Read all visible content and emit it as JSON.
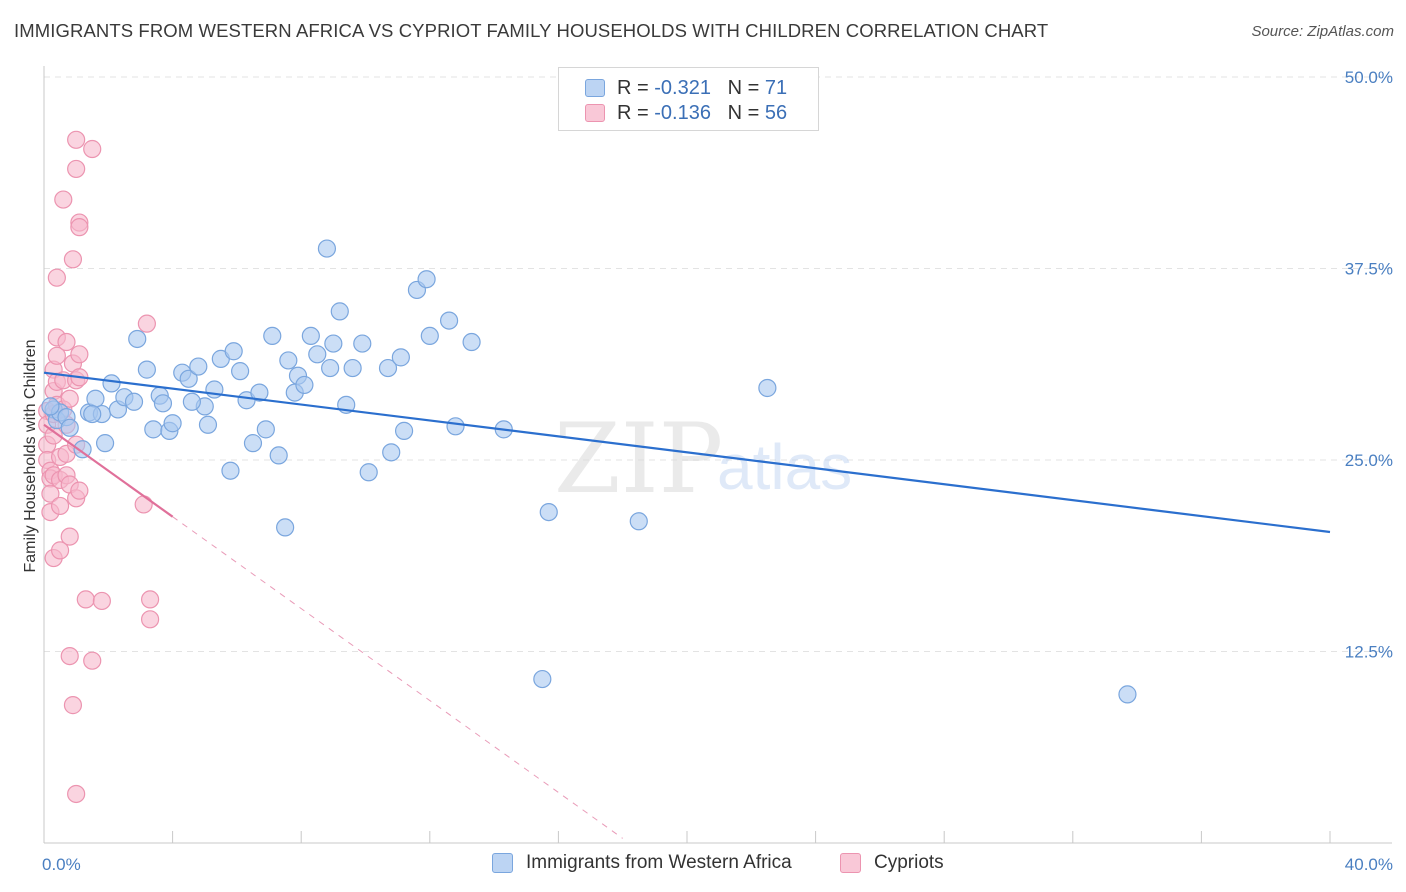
{
  "title": "IMMIGRANTS FROM WESTERN AFRICA VS CYPRIOT FAMILY HOUSEHOLDS WITH CHILDREN CORRELATION CHART",
  "source": "Source: ZipAtlas.com",
  "watermark": {
    "zip": "ZIP",
    "atlas": "atlas"
  },
  "legend": {
    "blue": {
      "r_label": "R = ",
      "r_value": "-0.321",
      "n_label": "N = ",
      "n_value": "71"
    },
    "pink": {
      "r_label": "R = ",
      "r_value": "-0.136",
      "n_label": "N = ",
      "n_value": "56"
    }
  },
  "colors": {
    "blue_fill": "#a9c8f0",
    "blue_stroke": "#7aa6de",
    "blue_line": "#2b6fce",
    "pink_fill": "#f6b8cb",
    "pink_stroke": "#ec94b0",
    "pink_line": "#e0709a",
    "grid": "#e3e3e3",
    "tick_text": "#4a7fc1"
  },
  "chart_data": {
    "type": "scatter",
    "title": "IMMIGRANTS FROM WESTERN AFRICA VS CYPRIOT FAMILY HOUSEHOLDS WITH CHILDREN CORRELATION CHART",
    "xlabel": "",
    "ylabel": "Family Households with Children",
    "xlim": [
      0,
      40
    ],
    "ylim": [
      0,
      50
    ],
    "x_tick_labels": [
      "0.0%",
      "40.0%"
    ],
    "y_ticks": [
      12.5,
      25.0,
      37.5,
      50.0
    ],
    "y_tick_labels": [
      "12.5%",
      "25.0%",
      "37.5%",
      "50.0%"
    ],
    "grid": true,
    "legend_position": "top-center",
    "series": [
      {
        "name": "Immigrants from Western Africa",
        "color": "#a9c8f0",
        "trend": {
          "x": [
            0,
            40
          ],
          "y": [
            30.7,
            20.3
          ]
        },
        "points": [
          [
            0.3,
            28.3
          ],
          [
            0.4,
            27.6
          ],
          [
            0.5,
            28.1
          ],
          [
            0.7,
            27.8
          ],
          [
            0.8,
            27.1
          ],
          [
            1.2,
            25.7
          ],
          [
            1.4,
            28.1
          ],
          [
            1.6,
            29.0
          ],
          [
            1.8,
            28.0
          ],
          [
            1.9,
            26.1
          ],
          [
            2.1,
            30.0
          ],
          [
            2.3,
            28.3
          ],
          [
            2.5,
            29.1
          ],
          [
            2.8,
            28.8
          ],
          [
            2.9,
            32.9
          ],
          [
            3.2,
            30.9
          ],
          [
            3.4,
            27.0
          ],
          [
            3.6,
            29.2
          ],
          [
            3.7,
            28.7
          ],
          [
            3.9,
            26.9
          ],
          [
            4.0,
            27.4
          ],
          [
            4.3,
            30.7
          ],
          [
            4.5,
            30.3
          ],
          [
            4.8,
            31.1
          ],
          [
            5.0,
            28.5
          ],
          [
            5.1,
            27.3
          ],
          [
            5.3,
            29.6
          ],
          [
            5.5,
            31.6
          ],
          [
            5.8,
            24.3
          ],
          [
            5.9,
            32.1
          ],
          [
            6.1,
            30.8
          ],
          [
            6.3,
            28.9
          ],
          [
            6.5,
            26.1
          ],
          [
            6.7,
            29.4
          ],
          [
            6.9,
            27.0
          ],
          [
            7.1,
            33.1
          ],
          [
            7.3,
            25.3
          ],
          [
            7.5,
            20.6
          ],
          [
            7.6,
            31.5
          ],
          [
            7.8,
            29.4
          ],
          [
            7.9,
            30.5
          ],
          [
            8.1,
            29.9
          ],
          [
            8.3,
            33.1
          ],
          [
            8.5,
            31.9
          ],
          [
            8.9,
            31.0
          ],
          [
            9.0,
            32.6
          ],
          [
            9.2,
            34.7
          ],
          [
            9.4,
            28.6
          ],
          [
            9.6,
            31.0
          ],
          [
            9.9,
            32.6
          ],
          [
            10.1,
            24.2
          ],
          [
            10.7,
            31.0
          ],
          [
            10.8,
            25.5
          ],
          [
            11.1,
            31.7
          ],
          [
            11.2,
            26.9
          ],
          [
            11.6,
            36.1
          ],
          [
            11.9,
            36.8
          ],
          [
            12.0,
            33.1
          ],
          [
            12.6,
            34.1
          ],
          [
            12.8,
            27.2
          ],
          [
            13.3,
            32.7
          ],
          [
            14.3,
            27.0
          ],
          [
            15.7,
            21.6
          ],
          [
            15.5,
            10.7
          ],
          [
            18.5,
            21.0
          ],
          [
            22.5,
            29.7
          ],
          [
            33.7,
            9.7
          ],
          [
            8.8,
            38.8
          ],
          [
            1.5,
            28.0
          ],
          [
            4.6,
            28.8
          ],
          [
            0.2,
            28.5
          ]
        ]
      },
      {
        "name": "Cypriots",
        "color": "#f6b8cb",
        "trend": {
          "x": [
            0,
            4.0
          ],
          "y": [
            27.3,
            21.3
          ]
        },
        "trend_dashed": {
          "x": [
            4.0,
            18.0
          ],
          "y": [
            21.3,
            0.3
          ]
        },
        "points": [
          [
            0.1,
            28.2
          ],
          [
            0.1,
            27.3
          ],
          [
            0.1,
            26.0
          ],
          [
            0.1,
            25.0
          ],
          [
            0.2,
            24.3
          ],
          [
            0.2,
            23.8
          ],
          [
            0.2,
            22.8
          ],
          [
            0.2,
            21.6
          ],
          [
            0.3,
            30.9
          ],
          [
            0.3,
            29.5
          ],
          [
            0.3,
            28.0
          ],
          [
            0.3,
            26.6
          ],
          [
            0.3,
            24.0
          ],
          [
            0.3,
            18.6
          ],
          [
            0.4,
            33.0
          ],
          [
            0.4,
            31.8
          ],
          [
            0.4,
            30.1
          ],
          [
            0.4,
            28.6
          ],
          [
            0.4,
            36.9
          ],
          [
            0.5,
            25.2
          ],
          [
            0.5,
            23.7
          ],
          [
            0.5,
            22.0
          ],
          [
            0.5,
            19.1
          ],
          [
            0.6,
            42.0
          ],
          [
            0.6,
            30.2
          ],
          [
            0.6,
            28.3
          ],
          [
            0.7,
            32.7
          ],
          [
            0.7,
            27.3
          ],
          [
            0.7,
            25.4
          ],
          [
            0.7,
            24.0
          ],
          [
            0.8,
            29.0
          ],
          [
            0.8,
            23.4
          ],
          [
            0.8,
            20.0
          ],
          [
            0.8,
            12.2
          ],
          [
            0.9,
            38.1
          ],
          [
            0.9,
            31.3
          ],
          [
            0.9,
            9.0
          ],
          [
            1.0,
            45.9
          ],
          [
            1.0,
            44.0
          ],
          [
            1.0,
            30.2
          ],
          [
            1.0,
            26.0
          ],
          [
            1.0,
            22.5
          ],
          [
            1.1,
            40.5
          ],
          [
            1.1,
            40.2
          ],
          [
            1.1,
            31.9
          ],
          [
            1.1,
            30.4
          ],
          [
            1.1,
            23.0
          ],
          [
            1.0,
            3.2
          ],
          [
            1.3,
            15.9
          ],
          [
            1.5,
            11.9
          ],
          [
            1.5,
            45.3
          ],
          [
            1.8,
            15.8
          ],
          [
            3.1,
            22.1
          ],
          [
            3.2,
            33.9
          ],
          [
            3.3,
            15.9
          ],
          [
            3.3,
            14.6
          ]
        ]
      }
    ]
  }
}
